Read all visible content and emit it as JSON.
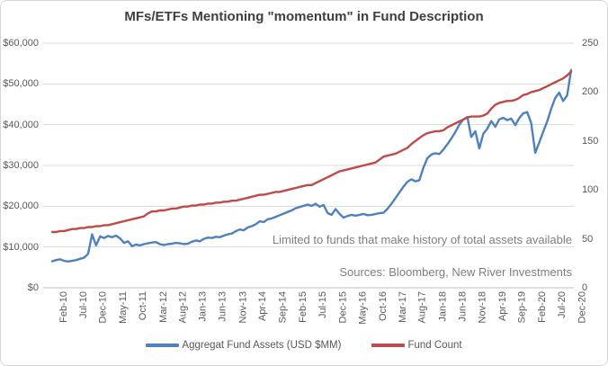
{
  "title": "MFs/ETFs Mentioning \"momentum\" in Fund Description",
  "annotations": {
    "note": "Limited to funds that make history of total assets available",
    "sources": "Sources: Bloomberg, New River Investments"
  },
  "legend": {
    "assets_label": "Aggregat Fund Assets (USD $MM)",
    "count_label": "Fund Count"
  },
  "colors": {
    "assets_line": "#4F81BD",
    "count_line": "#BE4B48",
    "gridline": "#D9D9D9",
    "axis_line": "#BFBFBF",
    "axis_text": "#595959",
    "title_text": "#3F3F3F",
    "note_text": "#7F7F7F"
  },
  "chart_data": {
    "type": "line",
    "title": "MFs/ETFs Mentioning \"momentum\" in Fund Description",
    "grid": true,
    "legend_position": "bottom",
    "x_tick_labels": [
      "Feb-10",
      "Jul-10",
      "Dec-10",
      "May-11",
      "Oct-11",
      "Mar-12",
      "Aug-12",
      "Jan-13",
      "Jun-13",
      "Nov-13",
      "Apr-14",
      "Sep-14",
      "Feb-15",
      "Jul-15",
      "Dec-15",
      "May-16",
      "Oct-16",
      "Mar-17",
      "Aug-17",
      "Jan-18",
      "Jun-18",
      "Nov-18",
      "Apr-19",
      "Sep-19",
      "Feb-20",
      "Jul-20",
      "Dec-20"
    ],
    "x_tick_step_months": 5,
    "y_left": {
      "labels": [
        "$60,000",
        "$50,000",
        "$40,000",
        "$30,000",
        "$20,000",
        "$10,000",
        "$0"
      ],
      "min": 0,
      "max": 60000
    },
    "y_right": {
      "labels": [
        "250",
        "200",
        "150",
        "100",
        "50",
        "0"
      ],
      "min": 0,
      "max": 250
    },
    "series": [
      {
        "name": "Aggregat Fund Assets (USD $MM)",
        "axis": "left",
        "color": "#4F81BD",
        "values": [
          6500,
          6800,
          7000,
          6600,
          6450,
          6600,
          6800,
          7100,
          7400,
          8300,
          13100,
          10400,
          12600,
          12200,
          12700,
          12400,
          12800,
          12100,
          11000,
          11400,
          10200,
          10600,
          10400,
          10700,
          10900,
          11100,
          11200,
          10700,
          10500,
          10700,
          10800,
          11000,
          10900,
          10700,
          10800,
          11300,
          11600,
          11400,
          12000,
          12300,
          12200,
          12500,
          12400,
          12800,
          13100,
          13300,
          13900,
          14300,
          14100,
          14800,
          15100,
          15600,
          16300,
          16100,
          16800,
          17000,
          17400,
          17800,
          18200,
          18600,
          19000,
          19500,
          19800,
          20100,
          20400,
          20100,
          20600,
          19900,
          20300,
          18300,
          17900,
          19300,
          18100,
          17200,
          17600,
          17900,
          17700,
          17900,
          18100,
          17800,
          17900,
          18100,
          18300,
          18400,
          19400,
          20600,
          22000,
          23400,
          24800,
          26000,
          26600,
          26100,
          26400,
          29500,
          31800,
          32700,
          33000,
          32800,
          33900,
          35200,
          36600,
          38200,
          40000,
          41300,
          41900,
          37000,
          38400,
          34200,
          37800,
          39000,
          40900,
          39500,
          41300,
          41700,
          41100,
          41500,
          39900,
          41600,
          42800,
          43100,
          40400,
          33100,
          35600,
          38200,
          40800,
          43900,
          46500,
          47900,
          45800,
          47200,
          53400
        ]
      },
      {
        "name": "Fund Count",
        "axis": "right",
        "color": "#BE4B48",
        "values": [
          57,
          57,
          58,
          58,
          59,
          60,
          60,
          61,
          61,
          62,
          62,
          63,
          63,
          64,
          64,
          65,
          66,
          67,
          68,
          69,
          70,
          71,
          72,
          73,
          76,
          78,
          78,
          79,
          79,
          80,
          81,
          81,
          82,
          83,
          83,
          84,
          84,
          85,
          85,
          86,
          86,
          87,
          87,
          88,
          88,
          89,
          89,
          90,
          91,
          92,
          93,
          94,
          95,
          95,
          96,
          97,
          98,
          98,
          99,
          100,
          101,
          102,
          103,
          104,
          105,
          105,
          107,
          109,
          111,
          113,
          115,
          117,
          119,
          120,
          121,
          122,
          123,
          124,
          125,
          126,
          127,
          128,
          131,
          134,
          135,
          136,
          137,
          139,
          141,
          143,
          147,
          150,
          153,
          156,
          158,
          159,
          160,
          160,
          161,
          164,
          166,
          168,
          170,
          172,
          174,
          175,
          175,
          175,
          176,
          178,
          183,
          187,
          189,
          190,
          191,
          191,
          192,
          194,
          197,
          198,
          200,
          201,
          202,
          204,
          206,
          208,
          210,
          212,
          214,
          217,
          221
        ]
      }
    ]
  }
}
